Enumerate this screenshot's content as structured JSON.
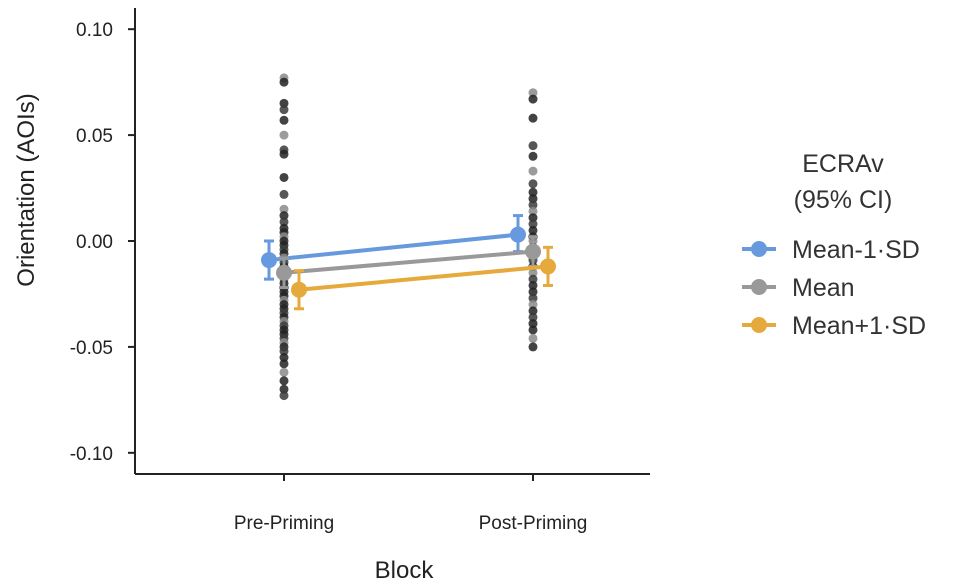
{
  "chart_data": {
    "type": "line",
    "xlabel": "Block",
    "ylabel": "Orientation (AOIs)",
    "ylim": [
      -0.11,
      0.11
    ],
    "yticks": [
      0.1,
      0.05,
      0.0,
      -0.05,
      -0.1
    ],
    "ytick_labels": [
      "0.10",
      "0.05",
      "0.00",
      "-0.05",
      "-0.10"
    ],
    "categories": [
      "Pre-Priming",
      "Post-Priming"
    ],
    "grid": false,
    "legend": {
      "title_line1": "ECRAv",
      "title_line2": "(95% CI)",
      "position": "right"
    },
    "series": [
      {
        "name": "Mean-1·SD",
        "color": "#6699dd",
        "values": [
          -0.009,
          0.003
        ],
        "ci_low": [
          -0.018,
          -0.005
        ],
        "ci_high": [
          0.0,
          0.012
        ]
      },
      {
        "name": "Mean",
        "color": "#999999",
        "values": [
          -0.015,
          -0.005
        ],
        "ci_low": [
          -0.022,
          -0.012
        ],
        "ci_high": [
          -0.008,
          0.002
        ]
      },
      {
        "name": "Mean+1·SD",
        "color": "#e6aa3c",
        "values": [
          -0.023,
          -0.012
        ],
        "ci_low": [
          -0.032,
          -0.021
        ],
        "ci_high": [
          -0.014,
          -0.003
        ]
      }
    ],
    "observations": [
      {
        "category": "Pre-Priming",
        "y": [
          0.077,
          0.075,
          0.065,
          0.062,
          0.057,
          0.05,
          0.043,
          0.041,
          0.03,
          0.022,
          0.015,
          0.012,
          0.009,
          0.006,
          0.004,
          0.002,
          0.0,
          -0.002,
          -0.004,
          -0.006,
          -0.008,
          -0.01,
          -0.012,
          -0.014,
          -0.016,
          -0.018,
          -0.02,
          -0.022,
          -0.024,
          -0.026,
          -0.028,
          -0.03,
          -0.032,
          -0.034,
          -0.036,
          -0.038,
          -0.04,
          -0.042,
          -0.044,
          -0.046,
          -0.048,
          -0.05,
          -0.052,
          -0.055,
          -0.058,
          -0.062,
          -0.066,
          -0.07,
          -0.073
        ]
      },
      {
        "category": "Post-Priming",
        "y": [
          0.07,
          0.067,
          0.058,
          0.045,
          0.04,
          0.033,
          0.027,
          0.023,
          0.02,
          0.017,
          0.014,
          0.011,
          0.008,
          0.005,
          0.002,
          0.0,
          -0.003,
          -0.006,
          -0.009,
          -0.012,
          -0.015,
          -0.018,
          -0.021,
          -0.024,
          -0.027,
          -0.03,
          -0.033,
          -0.036,
          -0.039,
          -0.042,
          -0.046,
          -0.05
        ]
      }
    ]
  }
}
